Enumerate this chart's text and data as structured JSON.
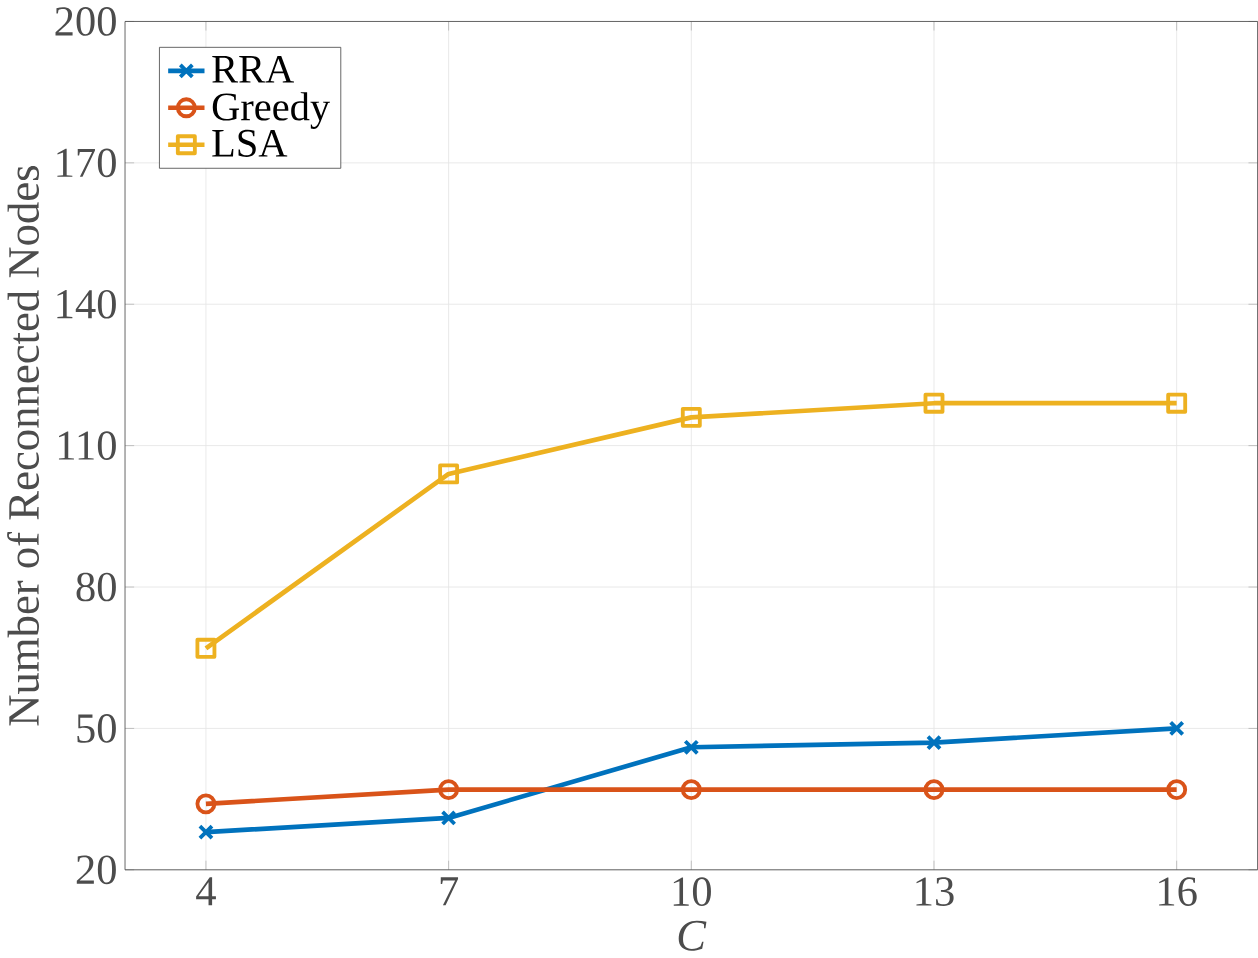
{
  "chart_data": {
    "type": "line",
    "xlabel": "*C*",
    "ylabel": "Number of Reconnected Nodes",
    "x": [
      4,
      7,
      10,
      13,
      16
    ],
    "xlim": [
      3,
      17
    ],
    "xticks": [
      4,
      7,
      10,
      13,
      16
    ],
    "ylim": [
      20,
      200
    ],
    "yticks": [
      20,
      50,
      80,
      110,
      140,
      170,
      200
    ],
    "grid": true,
    "legend": "top left",
    "series": [
      {
        "name": "RRA",
        "color": "#0072bd",
        "marker": "cross",
        "values": [
          28,
          31,
          46,
          47,
          50
        ]
      },
      {
        "name": "Greedy",
        "color": "#d95319",
        "marker": "circle",
        "values": [
          34,
          37,
          37,
          37,
          37
        ]
      },
      {
        "name": "LSA",
        "color": "#edb120",
        "marker": "square",
        "values": [
          67,
          104,
          116,
          119,
          119
        ]
      }
    ]
  }
}
